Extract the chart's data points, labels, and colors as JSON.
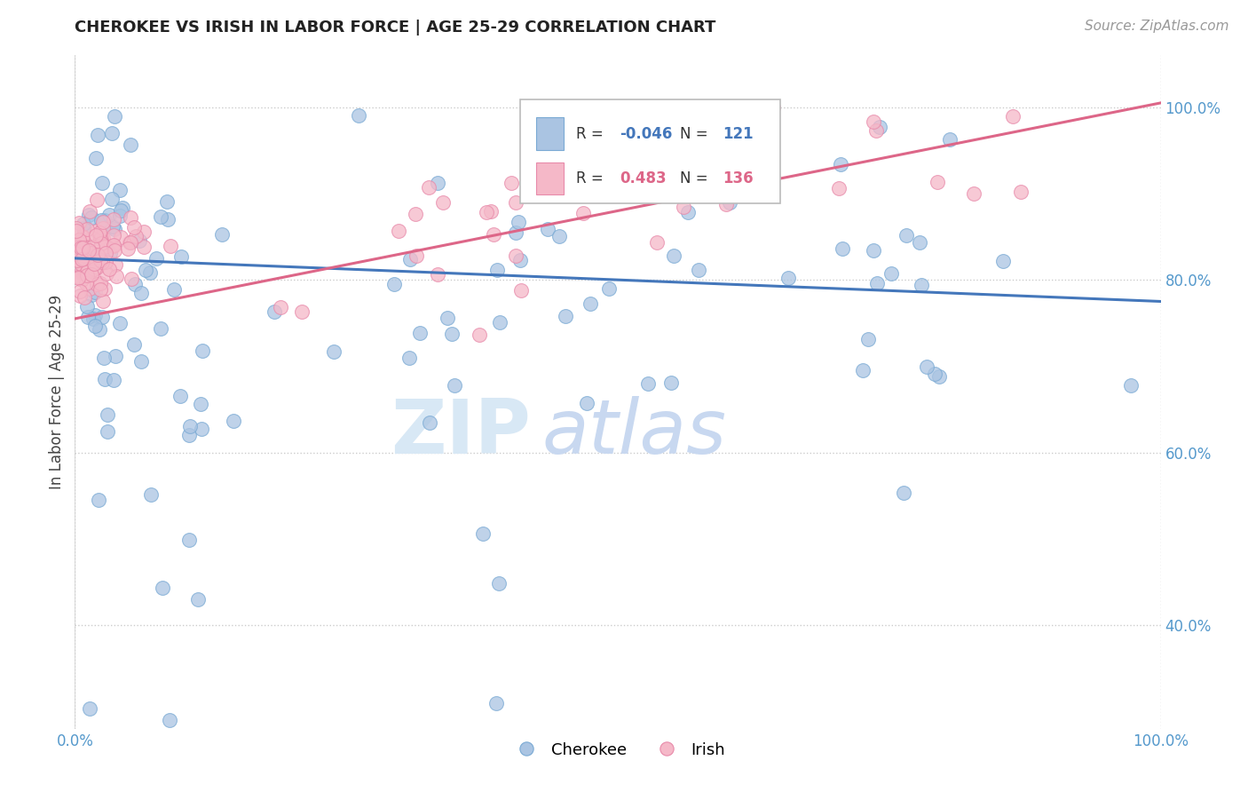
{
  "title": "CHEROKEE VS IRISH IN LABOR FORCE | AGE 25-29 CORRELATION CHART",
  "source": "Source: ZipAtlas.com",
  "ylabel": "In Labor Force | Age 25-29",
  "cherokee_R": -0.046,
  "cherokee_N": 121,
  "irish_R": 0.483,
  "irish_N": 136,
  "cherokee_color": "#aac4e2",
  "cherokee_edge_color": "#7aaad4",
  "cherokee_line_color": "#4477bb",
  "irish_color": "#f5b8c8",
  "irish_edge_color": "#e88aaa",
  "irish_line_color": "#dd6688",
  "legend_label_cherokee": "Cherokee",
  "legend_label_irish": "Irish",
  "watermark_zip": "ZIP",
  "watermark_atlas": "atlas",
  "background_color": "#ffffff",
  "grid_color": "#cccccc",
  "xlim": [
    0.0,
    1.0
  ],
  "ylim": [
    0.28,
    1.06
  ],
  "cherokee_trend_x0": 0.0,
  "cherokee_trend_y0": 0.825,
  "cherokee_trend_x1": 1.0,
  "cherokee_trend_y1": 0.775,
  "irish_trend_x0": 0.0,
  "irish_trend_y0": 0.755,
  "irish_trend_x1": 1.0,
  "irish_trend_y1": 1.005,
  "marker_size": 130,
  "marker_alpha": 0.75,
  "tick_color": "#5599cc",
  "title_fontsize": 13,
  "source_fontsize": 11,
  "ylabel_fontsize": 12
}
